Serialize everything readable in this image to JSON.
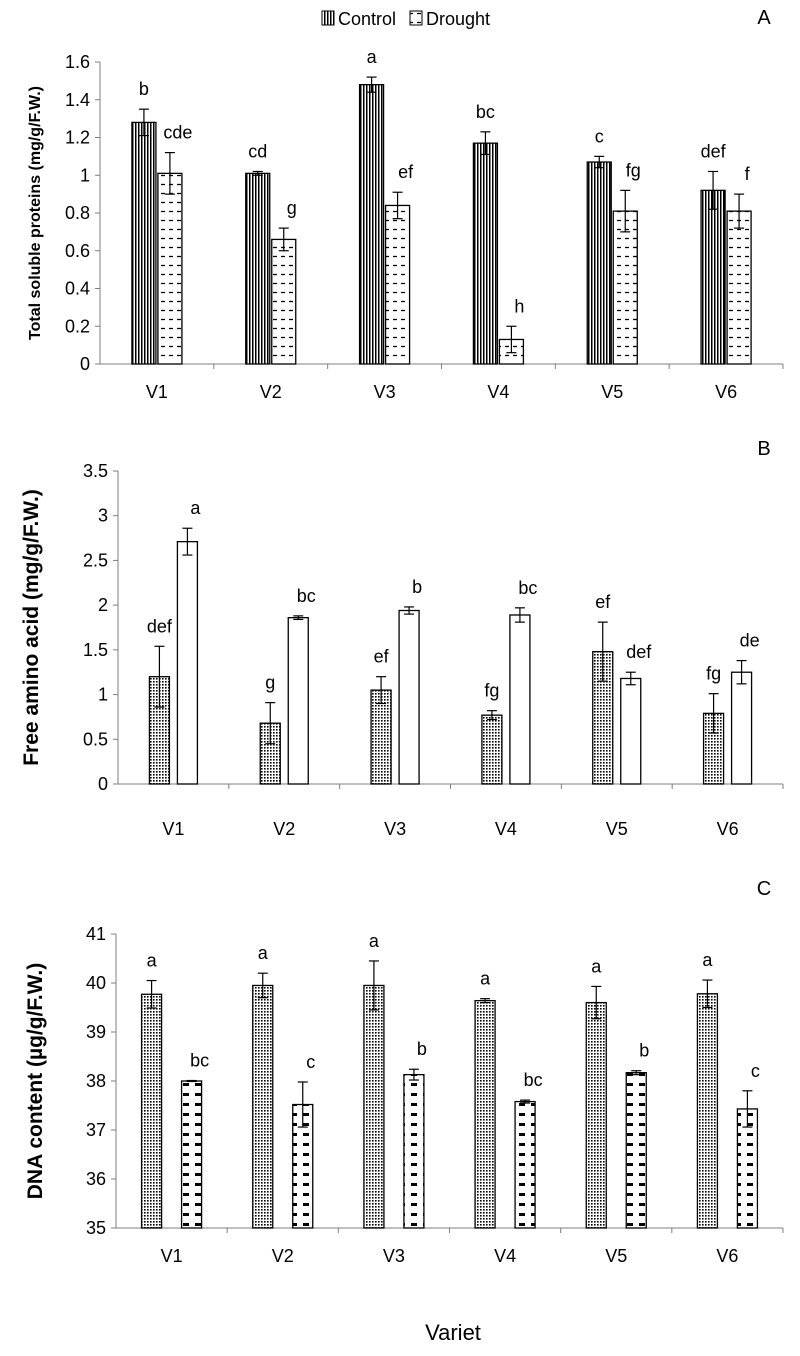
{
  "legend": {
    "control": "Control",
    "drought": "Drought"
  },
  "x_title": "Variet",
  "colors": {
    "bar_edge": "#000000",
    "axis": "#7f7f7f",
    "hatch": "#000000"
  },
  "chart_data": [
    {
      "type": "bar",
      "panel_label": "A",
      "ylabel": "Total soluble proteins (mg/g/F.W.)",
      "ylim": [
        0,
        1.6
      ],
      "ytick_step": 0.2,
      "yticks": [
        "0",
        "0.2",
        "0.4",
        "0.6",
        "0.8",
        "1",
        "1.2",
        "1.4",
        "1.6"
      ],
      "categories": [
        "V1",
        "V2",
        "V3",
        "V4",
        "V5",
        "V6"
      ],
      "series": [
        {
          "name": "Control",
          "values": [
            1.28,
            1.01,
            1.48,
            1.17,
            1.07,
            0.92
          ],
          "errors": [
            0.07,
            0.01,
            0.04,
            0.06,
            0.03,
            0.1
          ],
          "labels": [
            "b",
            "cd",
            "a",
            "bc",
            "c",
            "def"
          ]
        },
        {
          "name": "Drought",
          "values": [
            1.01,
            0.66,
            0.84,
            0.13,
            0.81,
            0.81
          ],
          "errors": [
            0.11,
            0.06,
            0.07,
            0.07,
            0.11,
            0.09
          ],
          "labels": [
            "cde",
            "g",
            "ef",
            "h",
            "fg",
            "f"
          ]
        }
      ]
    },
    {
      "type": "bar",
      "panel_label": "B",
      "ylabel": "Free amino acid (mg/g/F.W.)",
      "ylim": [
        0,
        3.5
      ],
      "ytick_step": 0.5,
      "yticks": [
        "0",
        "0.5",
        "1",
        "1.5",
        "2",
        "2.5",
        "3",
        "3.5"
      ],
      "categories": [
        "V1",
        "V2",
        "V3",
        "V4",
        "V5",
        "V6"
      ],
      "series": [
        {
          "name": "Control",
          "values": [
            1.2,
            0.68,
            1.05,
            0.77,
            1.48,
            0.79
          ],
          "errors": [
            0.34,
            0.23,
            0.15,
            0.05,
            0.33,
            0.22
          ],
          "labels": [
            "def",
            "g",
            "ef",
            "fg",
            "ef",
            "fg"
          ]
        },
        {
          "name": "Drought",
          "values": [
            2.71,
            1.86,
            1.94,
            1.89,
            1.18,
            1.25
          ],
          "errors": [
            0.15,
            0.02,
            0.04,
            0.08,
            0.07,
            0.13
          ],
          "labels": [
            "a",
            "bc",
            "b",
            "bc",
            "def",
            "de"
          ]
        }
      ]
    },
    {
      "type": "bar",
      "panel_label": "C",
      "ylabel": "DNA content (µg/g/F.W.)",
      "ylim": [
        35,
        41
      ],
      "ytick_step": 1,
      "yticks": [
        "35",
        "36",
        "37",
        "38",
        "39",
        "40",
        "41"
      ],
      "categories": [
        "V1",
        "V2",
        "V3",
        "V4",
        "V5",
        "V6"
      ],
      "series": [
        {
          "name": "Control",
          "values": [
            39.77,
            39.95,
            39.95,
            39.64,
            39.6,
            39.78
          ],
          "errors": [
            0.28,
            0.25,
            0.5,
            0.04,
            0.33,
            0.28
          ],
          "labels": [
            "a",
            "a",
            "a",
            "a",
            "a",
            "a"
          ]
        },
        {
          "name": "Drought",
          "values": [
            38.0,
            37.52,
            38.13,
            37.58,
            38.17,
            37.43
          ],
          "errors": [
            0.01,
            0.46,
            0.11,
            0.03,
            0.04,
            0.37
          ],
          "labels": [
            "bc",
            "c",
            "b",
            "bc",
            "b",
            "c"
          ]
        }
      ]
    }
  ]
}
